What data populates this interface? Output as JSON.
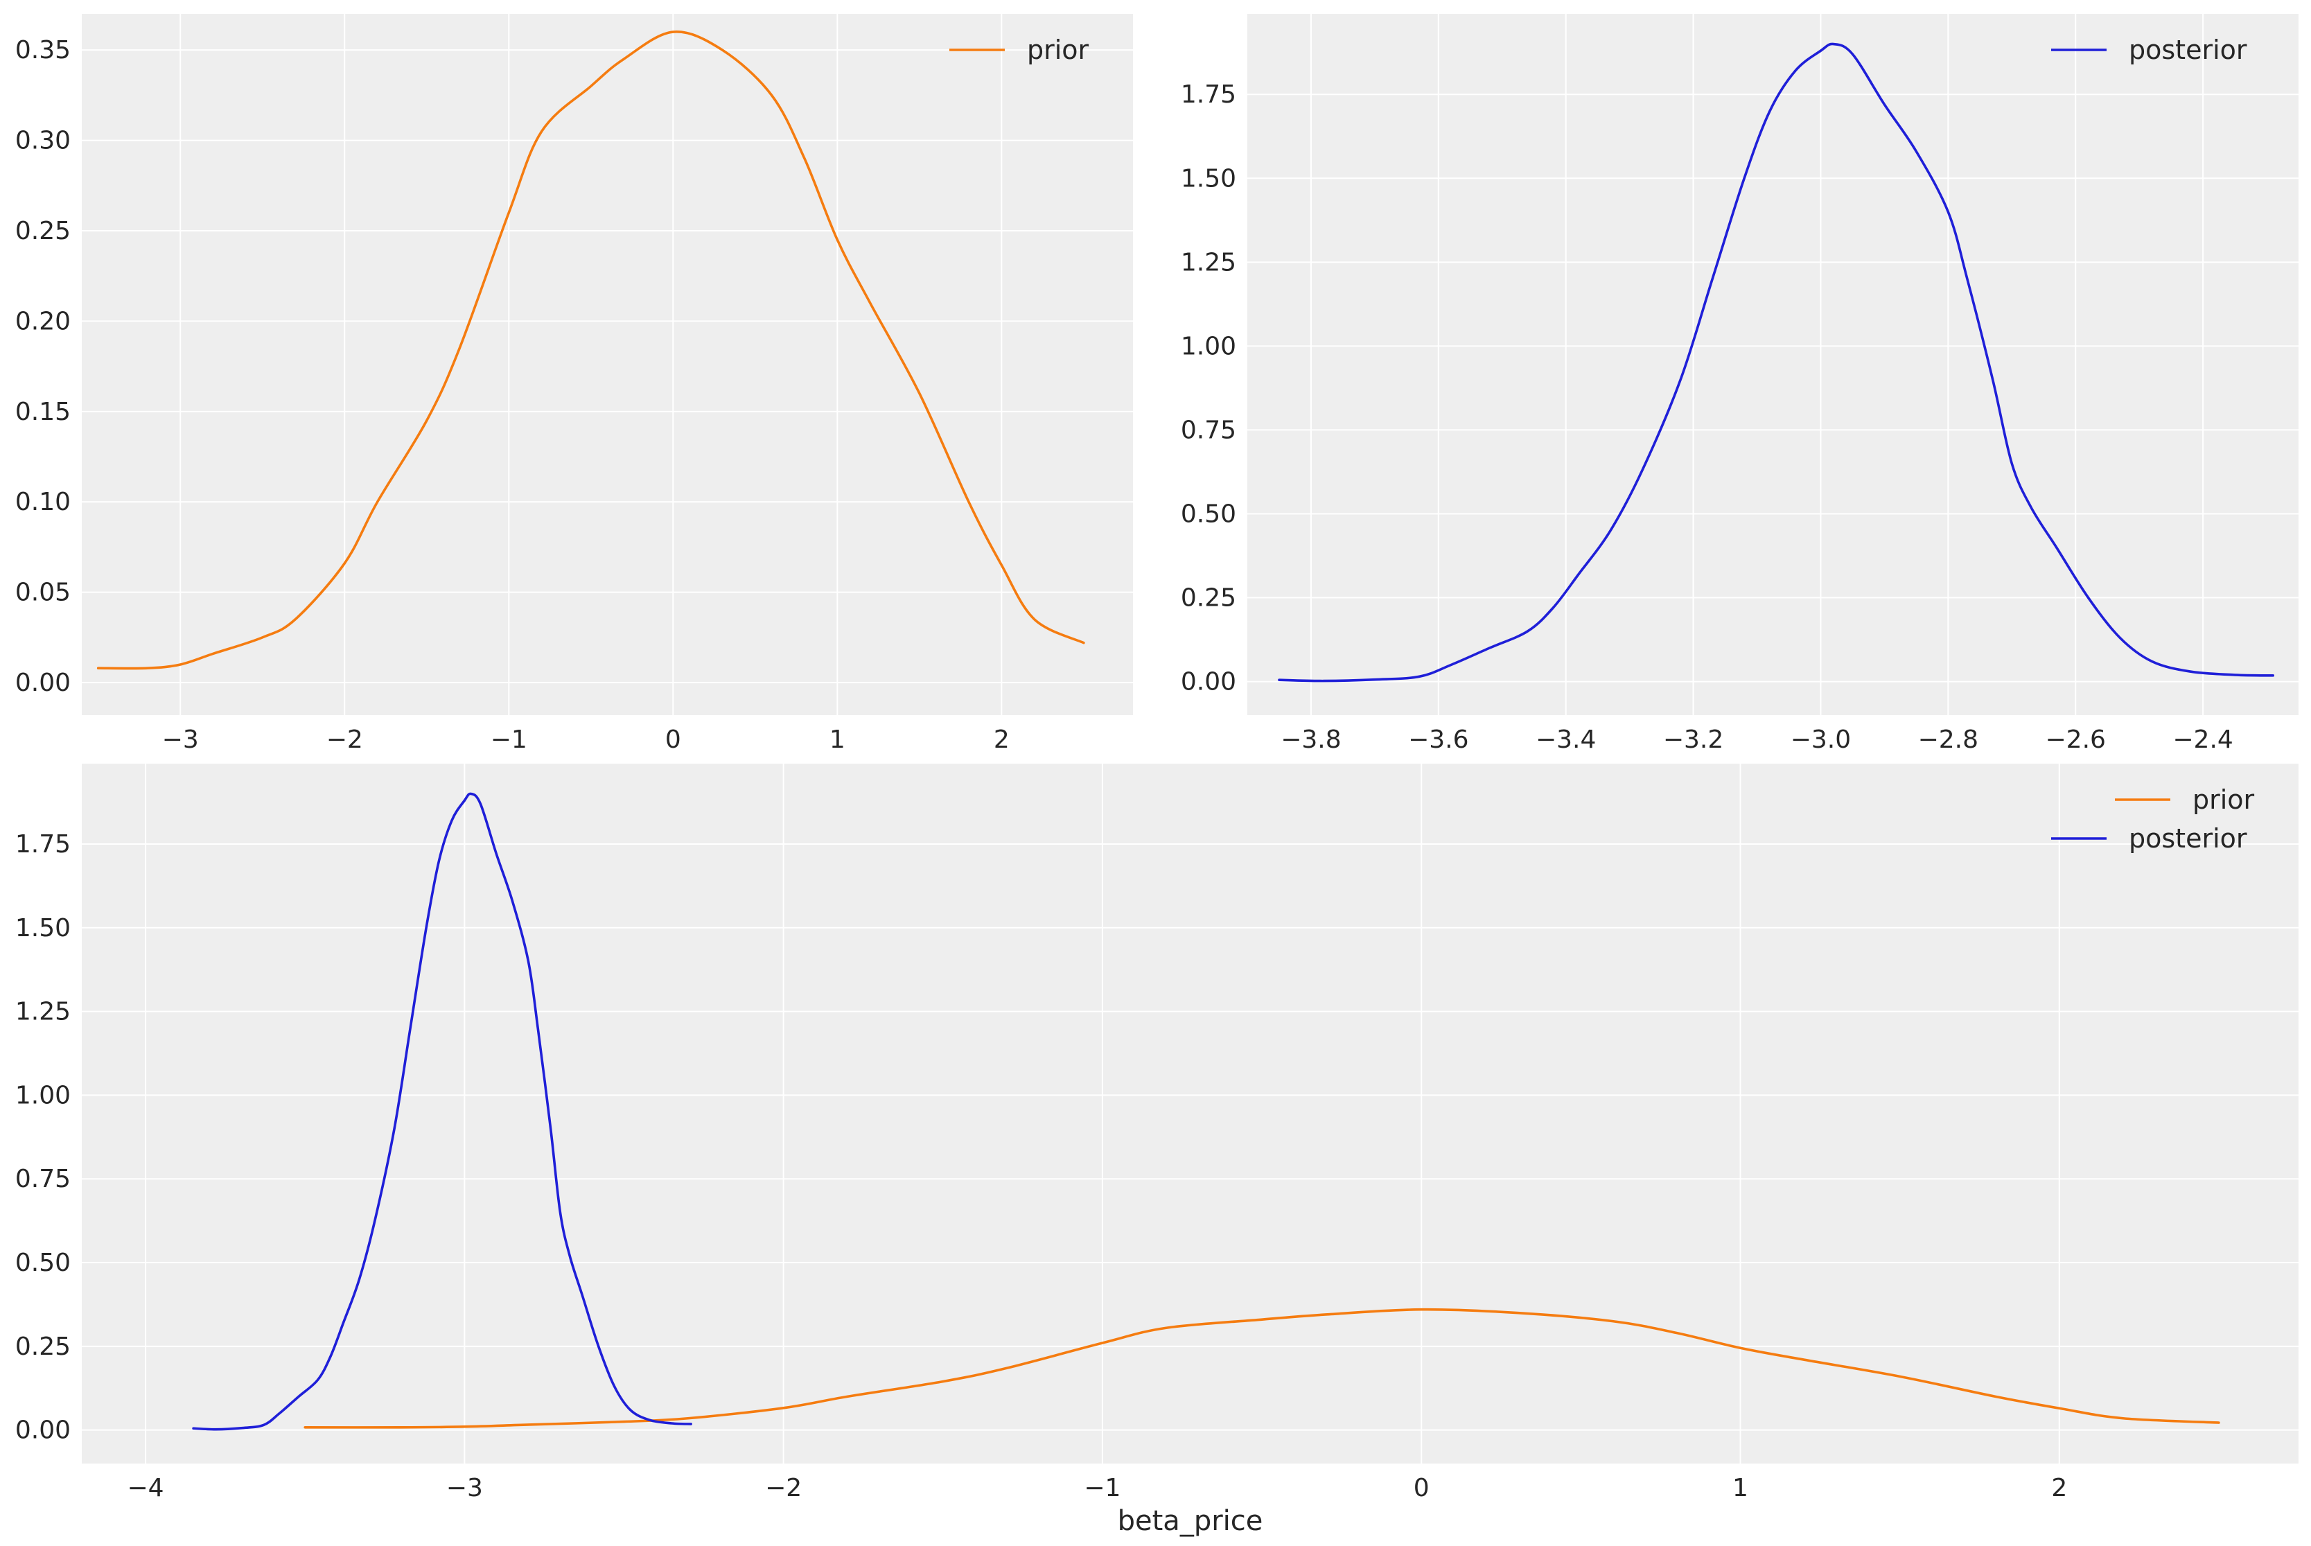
{
  "colors": {
    "prior": "#f57c10",
    "posterior": "#1f1fd8",
    "panel_bg": "#eeeeee",
    "grid": "#ffffff",
    "text": "#262626"
  },
  "chart_data": [
    {
      "type": "line",
      "title": "",
      "xlabel": "",
      "ylabel": "",
      "xlim": [
        -3.6,
        2.8
      ],
      "ylim": [
        -0.018,
        0.37
      ],
      "xticks": [
        -3,
        -2,
        -1,
        0,
        1,
        2
      ],
      "xtick_labels": [
        "−3",
        "−2",
        "−1",
        "0",
        "1",
        "2"
      ],
      "yticks": [
        0,
        0.05,
        0.1,
        0.15,
        0.2,
        0.25,
        0.3,
        0.35
      ],
      "ytick_labels": [
        "0.00",
        "0.05",
        "0.10",
        "0.15",
        "0.20",
        "0.25",
        "0.30",
        "0.35"
      ],
      "grid": true,
      "legend": "top-right",
      "series": [
        {
          "name": "prior",
          "color": "#f57c10",
          "x": [
            -3.5,
            -3.2,
            -3.0,
            -2.8,
            -2.5,
            -2.3,
            -2.0,
            -1.8,
            -1.5,
            -1.3,
            -1.0,
            -0.8,
            -0.5,
            -0.3,
            0.0,
            0.3,
            0.6,
            0.8,
            1.0,
            1.2,
            1.5,
            1.8,
            2.0,
            2.2,
            2.5
          ],
          "y": [
            0.008,
            0.008,
            0.01,
            0.016,
            0.025,
            0.035,
            0.066,
            0.1,
            0.145,
            0.185,
            0.26,
            0.305,
            0.33,
            0.345,
            0.36,
            0.35,
            0.325,
            0.29,
            0.245,
            0.21,
            0.16,
            0.1,
            0.065,
            0.035,
            0.022
          ]
        }
      ]
    },
    {
      "type": "line",
      "title": "",
      "xlabel": "",
      "ylabel": "",
      "xlim": [
        -3.9,
        -2.25
      ],
      "ylim": [
        -0.1,
        1.99
      ],
      "xticks": [
        -3.8,
        -3.6,
        -3.4,
        -3.2,
        -3.0,
        -2.8,
        -2.6,
        -2.4
      ],
      "xtick_labels": [
        "−3.8",
        "−3.6",
        "−3.4",
        "−3.2",
        "−3.0",
        "−2.8",
        "−2.6",
        "−2.4"
      ],
      "yticks": [
        0,
        0.25,
        0.5,
        0.75,
        1.0,
        1.25,
        1.5,
        1.75
      ],
      "ytick_labels": [
        "0.00",
        "0.25",
        "0.50",
        "0.75",
        "1.00",
        "1.25",
        "1.50",
        "1.75"
      ],
      "grid": true,
      "legend": "top-right",
      "series": [
        {
          "name": "posterior",
          "color": "#1f1fd8",
          "x": [
            -3.85,
            -3.78,
            -3.7,
            -3.63,
            -3.58,
            -3.52,
            -3.46,
            -3.42,
            -3.38,
            -3.33,
            -3.28,
            -3.22,
            -3.17,
            -3.12,
            -3.08,
            -3.04,
            -3.0,
            -2.98,
            -2.95,
            -2.9,
            -2.85,
            -2.8,
            -2.77,
            -2.73,
            -2.7,
            -2.67,
            -2.63,
            -2.58,
            -2.53,
            -2.48,
            -2.42,
            -2.35,
            -2.29
          ],
          "y": [
            0.005,
            0.002,
            0.006,
            0.015,
            0.05,
            0.1,
            0.15,
            0.22,
            0.32,
            0.45,
            0.63,
            0.9,
            1.2,
            1.5,
            1.7,
            1.82,
            1.88,
            1.9,
            1.87,
            1.72,
            1.58,
            1.4,
            1.2,
            0.9,
            0.65,
            0.52,
            0.4,
            0.25,
            0.13,
            0.06,
            0.03,
            0.02,
            0.018
          ]
        }
      ]
    },
    {
      "type": "line",
      "title": "",
      "xlabel": "beta_price",
      "ylabel": "",
      "xlim": [
        -4.2,
        2.75
      ],
      "ylim": [
        -0.1,
        1.99
      ],
      "xticks": [
        -4,
        -3,
        -2,
        -1,
        0,
        1,
        2
      ],
      "xtick_labels": [
        "−4",
        "−3",
        "−2",
        "−1",
        "0",
        "1",
        "2"
      ],
      "yticks": [
        0,
        0.25,
        0.5,
        0.75,
        1.0,
        1.25,
        1.5,
        1.75
      ],
      "ytick_labels": [
        "0.00",
        "0.25",
        "0.50",
        "0.75",
        "1.00",
        "1.25",
        "1.50",
        "1.75"
      ],
      "grid": true,
      "legend": "top-right",
      "series": [
        {
          "name": "prior",
          "color": "#f57c10",
          "x": [
            -3.5,
            -3.2,
            -3.0,
            -2.8,
            -2.5,
            -2.3,
            -2.0,
            -1.8,
            -1.5,
            -1.3,
            -1.0,
            -0.8,
            -0.5,
            -0.3,
            0.0,
            0.3,
            0.6,
            0.8,
            1.0,
            1.2,
            1.5,
            1.8,
            2.0,
            2.2,
            2.5
          ],
          "y": [
            0.008,
            0.008,
            0.01,
            0.016,
            0.025,
            0.035,
            0.066,
            0.1,
            0.145,
            0.185,
            0.26,
            0.305,
            0.33,
            0.345,
            0.36,
            0.35,
            0.325,
            0.29,
            0.245,
            0.21,
            0.16,
            0.1,
            0.065,
            0.035,
            0.022
          ]
        },
        {
          "name": "posterior",
          "color": "#1f1fd8",
          "x": [
            -3.85,
            -3.78,
            -3.7,
            -3.63,
            -3.58,
            -3.52,
            -3.46,
            -3.42,
            -3.38,
            -3.33,
            -3.28,
            -3.22,
            -3.17,
            -3.12,
            -3.08,
            -3.04,
            -3.0,
            -2.98,
            -2.95,
            -2.9,
            -2.85,
            -2.8,
            -2.77,
            -2.73,
            -2.7,
            -2.67,
            -2.63,
            -2.58,
            -2.53,
            -2.48,
            -2.42,
            -2.35,
            -2.29
          ],
          "y": [
            0.005,
            0.002,
            0.006,
            0.015,
            0.05,
            0.1,
            0.15,
            0.22,
            0.32,
            0.45,
            0.63,
            0.9,
            1.2,
            1.5,
            1.7,
            1.82,
            1.88,
            1.9,
            1.87,
            1.72,
            1.58,
            1.4,
            1.2,
            0.9,
            0.65,
            0.52,
            0.4,
            0.25,
            0.13,
            0.06,
            0.03,
            0.02,
            0.018
          ]
        }
      ]
    }
  ]
}
